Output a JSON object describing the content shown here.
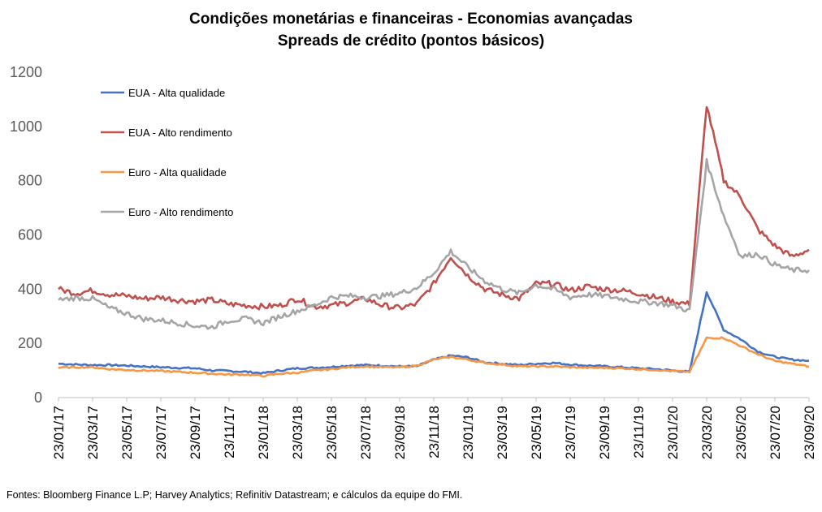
{
  "chart_data": {
    "type": "line",
    "title": "Condições monetárias e financeiras - Economias avançadas",
    "subtitle": "Spreads de crédito (pontos básicos)",
    "xlabel": "",
    "ylabel": "",
    "ylim": [
      0,
      1200
    ],
    "yticks": [
      "0",
      "200",
      "400",
      "600",
      "800",
      "1000",
      "1200"
    ],
    "xtick_labels": [
      "23/01/17",
      "23/03/17",
      "23/05/17",
      "23/07/17",
      "23/09/17",
      "23/11/17",
      "23/01/18",
      "23/03/18",
      "23/05/18",
      "23/07/18",
      "23/09/18",
      "23/11/18",
      "23/01/19",
      "23/03/19",
      "23/05/19",
      "23/07/19",
      "23/09/19",
      "23/11/19",
      "23/01/20",
      "23/03/20",
      "23/05/20",
      "23/07/20",
      "23/09/20"
    ],
    "grid": false,
    "legend_position": "top-left",
    "x": [
      "2017-01",
      "2017-02",
      "2017-03",
      "2017-04",
      "2017-05",
      "2017-06",
      "2017-07",
      "2017-08",
      "2017-09",
      "2017-10",
      "2017-11",
      "2017-12",
      "2018-01",
      "2018-02",
      "2018-03",
      "2018-04",
      "2018-05",
      "2018-06",
      "2018-07",
      "2018-08",
      "2018-09",
      "2018-10",
      "2018-11",
      "2018-12",
      "2019-01",
      "2019-02",
      "2019-03",
      "2019-04",
      "2019-05",
      "2019-06",
      "2019-07",
      "2019-08",
      "2019-09",
      "2019-10",
      "2019-11",
      "2019-12",
      "2020-01",
      "2020-02",
      "2020-03",
      "2020-04",
      "2020-05",
      "2020-06",
      "2020-07",
      "2020-08",
      "2020-09"
    ],
    "series": [
      {
        "name": "EUA - Alta qualidade",
        "color": "#4472C4",
        "values": [
          125,
          122,
          120,
          120,
          118,
          115,
          112,
          110,
          108,
          100,
          98,
          95,
          90,
          100,
          108,
          110,
          113,
          118,
          120,
          118,
          115,
          115,
          140,
          155,
          148,
          130,
          125,
          120,
          125,
          128,
          122,
          118,
          115,
          112,
          108,
          105,
          100,
          95,
          390,
          250,
          215,
          170,
          150,
          140,
          136
        ]
      },
      {
        "name": "EUA - Alto rendimento",
        "color": "#C0504D",
        "values": [
          400,
          385,
          395,
          380,
          375,
          365,
          370,
          360,
          355,
          360,
          345,
          340,
          335,
          340,
          365,
          335,
          340,
          350,
          365,
          340,
          330,
          345,
          420,
          520,
          450,
          400,
          380,
          365,
          420,
          420,
          395,
          410,
          400,
          395,
          385,
          370,
          355,
          345,
          1080,
          800,
          740,
          620,
          560,
          520,
          545
        ]
      },
      {
        "name": "Euro - Alta qualidade",
        "color": "#F79646",
        "values": [
          110,
          112,
          112,
          105,
          102,
          100,
          98,
          95,
          92,
          88,
          85,
          85,
          80,
          88,
          92,
          100,
          105,
          112,
          115,
          112,
          112,
          118,
          140,
          150,
          140,
          128,
          122,
          115,
          115,
          115,
          112,
          110,
          110,
          108,
          105,
          102,
          98,
          95,
          220,
          220,
          190,
          160,
          135,
          125,
          115
        ]
      },
      {
        "name": "Euro - Alto rendimento",
        "color": "#A5A5A5",
        "values": [
          360,
          368,
          365,
          330,
          310,
          290,
          285,
          275,
          265,
          260,
          285,
          290,
          275,
          300,
          320,
          340,
          370,
          375,
          370,
          375,
          385,
          405,
          460,
          540,
          480,
          430,
          400,
          385,
          415,
          400,
          370,
          380,
          375,
          365,
          355,
          350,
          340,
          320,
          870,
          670,
          520,
          530,
          490,
          470,
          470
        ]
      }
    ]
  },
  "footer": {
    "source": "Fontes: Bloomberg Finance L.P; Harvey Analytics; Refinitiv Datastream; e cálculos da equipe do FMI."
  }
}
